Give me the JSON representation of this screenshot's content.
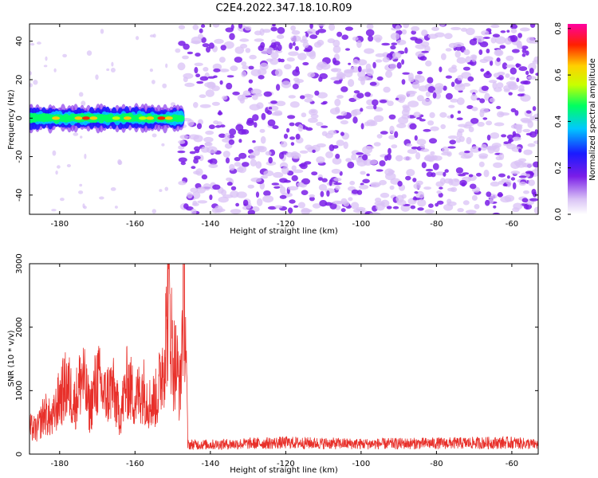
{
  "figure_title": "C2E4.2022.347.18.10.R09",
  "colors": {
    "snr_line": "#e8302a",
    "axis": "#000000",
    "noise_main": "#7a1de8",
    "noise_light": "#d9c2f5"
  },
  "chart_data": [
    {
      "type": "heatmap",
      "title": "",
      "xlabel": "Height of straight line (km)",
      "ylabel": "Frequency (Hz)",
      "xlim": [
        -188,
        -53
      ],
      "ylim": [
        -50,
        49
      ],
      "xticks": [
        -180,
        -160,
        -140,
        -120,
        -100,
        -80,
        -60
      ],
      "yticks": [
        -40,
        -20,
        0,
        20,
        40
      ],
      "colorbar": {
        "label": "Normalized spectral amplitude",
        "range": [
          0.0,
          0.82
        ],
        "ticks": [
          0.0,
          0.2,
          0.4,
          0.6,
          0.8
        ],
        "colormap": "rainbow (white-violet-blue-cyan-green-yellow-red-magenta)"
      },
      "signal_band": {
        "x_range": [
          -188,
          -148
        ],
        "frequency_hz": 0,
        "half_width_hz": 5,
        "peak_amplitude": 0.8
      },
      "noise_region": {
        "x_range": [
          -148,
          -53
        ],
        "amplitude_range": [
          0.05,
          0.25
        ]
      },
      "grid": false,
      "legend": "none"
    },
    {
      "type": "line",
      "title": "",
      "xlabel": "Height of straight line (km)",
      "ylabel": "SNR (10 * v/v)",
      "xlim": [
        -188,
        -53
      ],
      "ylim": [
        0,
        3000
      ],
      "xticks": [
        -180,
        -160,
        -140,
        -120,
        -100,
        -80,
        -60
      ],
      "yticks": [
        0,
        1000,
        2000,
        3000
      ],
      "series": [
        {
          "x": [
            -188,
            -186,
            -184,
            -182,
            -180,
            -178,
            -176,
            -174,
            -172,
            -170,
            -168,
            -166,
            -164,
            -162,
            -160,
            -158,
            -156,
            -154,
            -152,
            -151,
            -150,
            -149,
            -148,
            -147,
            -146.5,
            -146,
            -140,
            -120,
            -100,
            -80,
            -60,
            -53
          ],
          "y": [
            420,
            380,
            650,
            520,
            900,
            1100,
            800,
            1250,
            700,
            1200,
            900,
            1050,
            600,
            1150,
            850,
            1050,
            800,
            900,
            1700,
            2600,
            1500,
            1400,
            1000,
            2950,
            1800,
            150,
            150,
            180,
            160,
            170,
            180,
            150
          ]
        }
      ],
      "grid": false,
      "legend": "none"
    }
  ]
}
